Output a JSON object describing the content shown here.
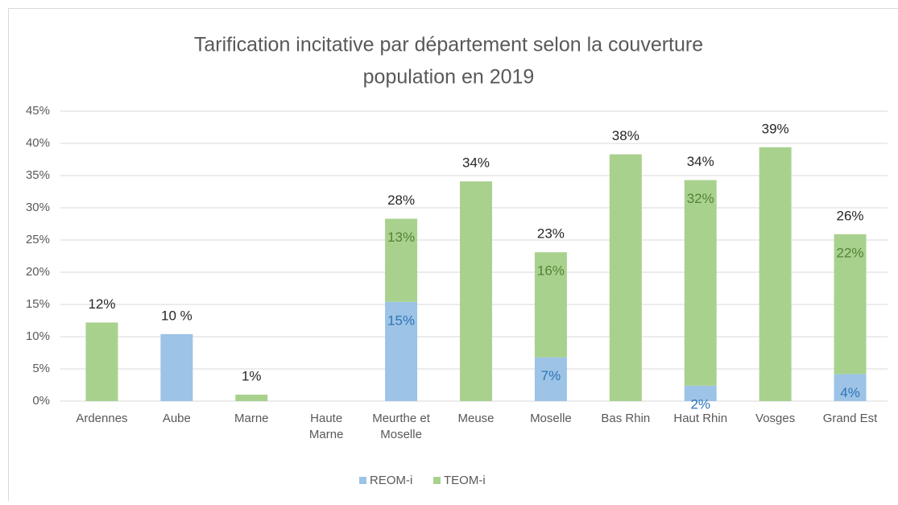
{
  "chart_data": {
    "type": "stacked_bar",
    "title": [
      "Tarification incitative par département selon la couverture",
      "population en 2019"
    ],
    "categories": [
      "Ardennes",
      "Aube",
      "Marne",
      "Haute Marne",
      "Meurthe et Moselle",
      "Meuse",
      "Moselle",
      "Bas Rhin",
      "Haut Rhin",
      "Vosges",
      "Grand Est"
    ],
    "series": [
      {
        "name": "REOM-i",
        "color": "#9dc3e6",
        "label_color": "#2e75b6",
        "values": [
          0,
          10.4,
          0,
          0,
          15.4,
          0,
          6.8,
          0,
          2.4,
          0,
          4.2
        ],
        "value_labels": [
          null,
          null,
          null,
          null,
          "15%",
          null,
          "7%",
          null,
          "2%",
          null,
          "4%"
        ]
      },
      {
        "name": "TEOM-i",
        "color": "#a9d18e",
        "label_color": "#548235",
        "values": [
          12.2,
          0,
          1.0,
          0,
          12.9,
          34.1,
          16.3,
          38.3,
          31.9,
          39.4,
          21.7
        ],
        "value_labels": [
          null,
          null,
          null,
          null,
          "13%",
          null,
          "16%",
          null,
          "32%",
          null,
          "22%"
        ]
      }
    ],
    "total_labels": [
      "12%",
      "10 %",
      "1%",
      null,
      "28%",
      "34%",
      "23%",
      "38%",
      "34%",
      "39%",
      "26%"
    ],
    "ylim": [
      0,
      45
    ],
    "yticks": [
      {
        "value": 0,
        "label": "0%"
      },
      {
        "value": 5,
        "label": "5%"
      },
      {
        "value": 10,
        "label": "10%"
      },
      {
        "value": 15,
        "label": "15%"
      },
      {
        "value": 20,
        "label": "20%"
      },
      {
        "value": 25,
        "label": "25%"
      },
      {
        "value": 30,
        "label": "30%"
      },
      {
        "value": 35,
        "label": "35%"
      },
      {
        "value": 40,
        "label": "40%"
      },
      {
        "value": 45,
        "label": "45%"
      }
    ],
    "grid": true,
    "legend": "bottom"
  }
}
